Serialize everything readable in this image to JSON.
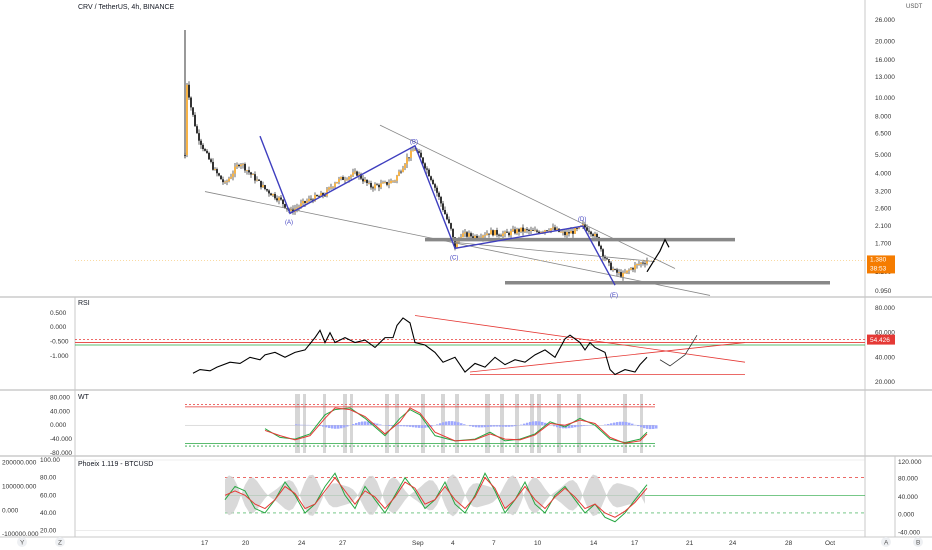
{
  "header": {
    "symbol_title": "CRV / TetherUS, 4h, BINANCE",
    "currency": "USDT"
  },
  "colors": {
    "candle_up": "#f7a11a",
    "candle_down": "#000000",
    "wave_line": "#3f3fbf",
    "trend_line": "#888888",
    "level_bar": "#888888",
    "price_badge": "#f57c00",
    "rsi_line": "#000000",
    "rsi_badge": "#e53935",
    "red_line": "#e53935",
    "green_line": "#26a641",
    "wt_fill": "#9fa8ff"
  },
  "chart_data": [
    {
      "type": "candlestick",
      "title": "CRV / TetherUS, 4h, BINANCE",
      "y_scale": "log",
      "y_ticks": [
        "26.000",
        "20.000",
        "16.000",
        "13.000",
        "10.000",
        "8.000",
        "6.500",
        "5.000",
        "4.000",
        "3.200",
        "2.600",
        "2.100",
        "1.700",
        "1.380",
        "1.200",
        "0.950"
      ],
      "last_price": "1.380",
      "countdown": "38:53",
      "x_ticks": [
        "17",
        "20",
        "24",
        "27",
        "Sep",
        "4",
        "7",
        "10",
        "14",
        "17",
        "21",
        "24",
        "28",
        "Oct"
      ],
      "close_path": [
        [
          0,
          5.0
        ],
        [
          2,
          12.0
        ],
        [
          6,
          9.0
        ],
        [
          12,
          6.5
        ],
        [
          20,
          5.2
        ],
        [
          30,
          4.1
        ],
        [
          40,
          3.5
        ],
        [
          55,
          4.6
        ],
        [
          65,
          4.0
        ],
        [
          80,
          3.3
        ],
        [
          95,
          2.9
        ],
        [
          105,
          2.5
        ],
        [
          110,
          2.6
        ],
        [
          125,
          2.9
        ],
        [
          140,
          3.1
        ],
        [
          150,
          3.6
        ],
        [
          160,
          3.8
        ],
        [
          172,
          4.0
        ],
        [
          185,
          3.4
        ],
        [
          200,
          3.5
        ],
        [
          210,
          3.7
        ],
        [
          222,
          4.8
        ],
        [
          230,
          5.4
        ],
        [
          238,
          4.6
        ],
        [
          248,
          3.6
        ],
        [
          258,
          2.6
        ],
        [
          266,
          2.0
        ],
        [
          270,
          1.62
        ],
        [
          276,
          1.9
        ],
        [
          290,
          1.85
        ],
        [
          305,
          1.95
        ],
        [
          320,
          1.9
        ],
        [
          335,
          2.0
        ],
        [
          350,
          1.95
        ],
        [
          365,
          2.05
        ],
        [
          380,
          1.9
        ],
        [
          392,
          2.0
        ],
        [
          398,
          2.1
        ],
        [
          405,
          2.0
        ],
        [
          412,
          1.8
        ],
        [
          418,
          1.5
        ],
        [
          424,
          1.3
        ],
        [
          430,
          1.2
        ],
        [
          438,
          1.15
        ],
        [
          446,
          1.25
        ],
        [
          455,
          1.33
        ],
        [
          462,
          1.38
        ]
      ],
      "annotations": [
        {
          "label": "(A)",
          "x": 105,
          "y": 2.5
        },
        {
          "label": "(B)",
          "x": 230,
          "y": 5.4
        },
        {
          "label": "(C)",
          "x": 270,
          "y": 1.62
        },
        {
          "label": "(D)",
          "x": 398,
          "y": 2.1
        },
        {
          "label": "(E)",
          "x": 430,
          "y": 1.02
        }
      ],
      "wave_path": [
        [
          75,
          6.3
        ],
        [
          105,
          2.45
        ],
        [
          230,
          5.6
        ],
        [
          270,
          1.6
        ],
        [
          398,
          2.1
        ],
        [
          430,
          1.02
        ]
      ],
      "trend_lines": [
        [
          [
            20,
            3.2
          ],
          [
            525,
            0.9
          ]
        ],
        [
          [
            195,
            7.2
          ],
          [
            490,
            1.25
          ]
        ],
        [
          [
            270,
            1.72
          ],
          [
            470,
            1.36
          ]
        ]
      ],
      "levels": [
        {
          "x0": 240,
          "x1": 550,
          "y": 1.78
        },
        {
          "x0": 320,
          "x1": 645,
          "y": 1.05
        }
      ],
      "forecast_path": [
        [
          462,
          1.2
        ],
        [
          475,
          1.55
        ],
        [
          480,
          1.78
        ],
        [
          484,
          1.62
        ]
      ]
    },
    {
      "type": "line",
      "title": "RSI",
      "value_badge": "54.426",
      "y_ticks_right": [
        "80.000",
        "60.000",
        "40.000",
        "20.000"
      ],
      "y_ticks_left": [
        "0.500",
        "0.000",
        "-0.500",
        "-1.000"
      ],
      "ylim": [
        15,
        85
      ],
      "x": [
        8,
        15,
        25,
        32,
        45,
        55,
        65,
        75,
        80,
        90,
        100,
        110,
        120,
        130,
        135,
        140,
        145,
        150,
        160,
        170,
        180,
        190,
        200,
        208,
        212,
        218,
        225,
        230,
        240,
        250,
        258,
        270,
        280,
        290,
        300,
        310,
        320,
        330,
        340,
        350,
        360,
        370,
        380,
        385,
        395,
        400,
        405,
        410,
        420,
        425,
        430,
        440,
        450,
        455,
        462
      ],
      "values": [
        27,
        30,
        29,
        32,
        36,
        35,
        40,
        38,
        42,
        44,
        40,
        44,
        46,
        56,
        62,
        52,
        60,
        52,
        56,
        52,
        54,
        48,
        56,
        56,
        66,
        72,
        68,
        52,
        50,
        44,
        36,
        40,
        28,
        35,
        32,
        40,
        34,
        38,
        36,
        42,
        46,
        40,
        55,
        58,
        52,
        46,
        52,
        48,
        44,
        30,
        26,
        30,
        28,
        34,
        40
      ],
      "forecast_x": [
        475,
        485,
        500,
        512
      ],
      "forecast_values": [
        38,
        33,
        42,
        58
      ],
      "trend_lines": [
        [
          [
            230,
            74
          ],
          [
            560,
            36
          ]
        ],
        [
          [
            285,
            28
          ],
          [
            560,
            52
          ]
        ],
        [
          [
            285,
            26
          ],
          [
            560,
            26
          ]
        ]
      ],
      "levels": [
        {
          "value": 54.4,
          "color": "red",
          "style": "dotted"
        },
        {
          "value": 52,
          "color": "red",
          "style": "solid"
        },
        {
          "value": 50,
          "color": "green",
          "style": "solid"
        }
      ]
    },
    {
      "type": "line",
      "title": "WT",
      "y_ticks": [
        "80.000",
        "40.000",
        "0.000",
        "-40.000",
        "-80.000"
      ],
      "ylim": [
        -80,
        90
      ],
      "x": [
        80,
        95,
        110,
        125,
        140,
        150,
        165,
        180,
        200,
        215,
        225,
        235,
        250,
        270,
        290,
        305,
        320,
        335,
        350,
        365,
        380,
        395,
        410,
        425,
        440,
        455,
        462
      ],
      "series": [
        {
          "name": "",
          "color": "green",
          "values": [
            -10,
            -35,
            -40,
            -25,
            30,
            45,
            50,
            20,
            -30,
            20,
            45,
            30,
            -30,
            -45,
            -40,
            -20,
            -45,
            -40,
            -25,
            10,
            -5,
            20,
            0,
            -40,
            -50,
            -40,
            -20
          ]
        },
        {
          "name": "",
          "color": "red",
          "values": [
            -15,
            -30,
            -42,
            -30,
            20,
            50,
            45,
            25,
            -25,
            10,
            50,
            35,
            -20,
            -45,
            -42,
            -25,
            -40,
            -42,
            -28,
            5,
            0,
            15,
            5,
            -35,
            -52,
            -45,
            -25
          ]
        }
      ],
      "levels": [
        {
          "value": 60,
          "color": "red",
          "style": "dotted"
        },
        {
          "value": 53,
          "color": "red",
          "style": "solid"
        },
        {
          "value": -53,
          "color": "green",
          "style": "solid"
        },
        {
          "value": -60,
          "color": "green",
          "style": "dotted"
        }
      ]
    },
    {
      "type": "line",
      "title": "Phoeix 1.119 - BTCUSD",
      "y_ticks_left": [
        "200000.000",
        "100000.000",
        "0.000",
        "-100000.000"
      ],
      "y_ticks_mid": [
        "100.00",
        "80.00",
        "60.00",
        "40.00",
        "20.00"
      ],
      "y_ticks_right": [
        "120.000",
        "80.000",
        "40.000",
        "0.000",
        "-40.000"
      ],
      "ylim": [
        15,
        100
      ],
      "x": [
        40,
        50,
        60,
        70,
        80,
        90,
        100,
        110,
        120,
        130,
        140,
        150,
        160,
        170,
        180,
        190,
        200,
        210,
        220,
        230,
        240,
        250,
        260,
        270,
        280,
        290,
        300,
        310,
        320,
        330,
        340,
        350,
        360,
        370,
        380,
        390,
        400,
        410,
        420,
        430,
        440,
        450,
        462
      ],
      "series": [
        {
          "name": "",
          "color": "green",
          "values": [
            55,
            70,
            65,
            45,
            40,
            55,
            75,
            60,
            40,
            50,
            70,
            85,
            60,
            45,
            70,
            55,
            40,
            60,
            80,
            65,
            45,
            55,
            75,
            50,
            40,
            60,
            85,
            65,
            40,
            55,
            75,
            50,
            40,
            60,
            70,
            55,
            40,
            50,
            35,
            30,
            40,
            55,
            72
          ]
        },
        {
          "name": "",
          "color": "red",
          "values": [
            60,
            65,
            60,
            50,
            45,
            55,
            70,
            62,
            45,
            50,
            65,
            80,
            65,
            50,
            65,
            58,
            45,
            58,
            75,
            68,
            50,
            55,
            70,
            55,
            45,
            58,
            80,
            68,
            45,
            55,
            70,
            55,
            45,
            58,
            68,
            58,
            45,
            50,
            40,
            35,
            42,
            52,
            68
          ]
        }
      ],
      "levels": [
        {
          "value": 80,
          "color": "red",
          "style": "dashed"
        },
        {
          "value": 60,
          "color": "green",
          "style": "solid"
        },
        {
          "value": 40,
          "color": "green",
          "style": "dashed"
        }
      ]
    }
  ],
  "bottom_bar": {
    "left_buttons": [
      "Y",
      "Z"
    ],
    "right_buttons": [
      "A",
      "B"
    ]
  }
}
